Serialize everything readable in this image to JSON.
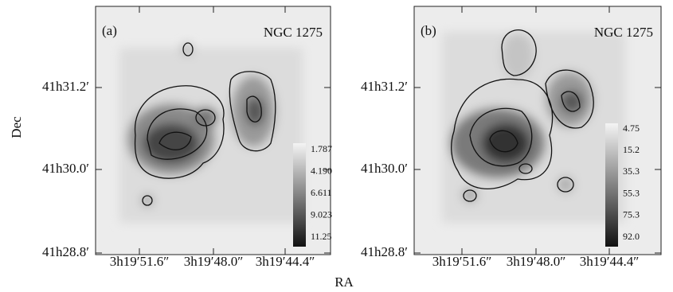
{
  "figure": {
    "y_axis_label": "Dec",
    "x_axis_label": "RA",
    "panels": [
      {
        "label": "(a)",
        "title": "NGC 1275",
        "y_tick_labels": [
          "41h31.2′",
          "41h30.0′",
          "41h28.8′"
        ],
        "x_tick_labels": [
          "3h19′51.6″",
          "3h19′48.0″",
          "3h19′44.4″"
        ],
        "colorbar_labels": [
          "1.787",
          "4.190",
          "6.611",
          "9.023",
          "11.25"
        ]
      },
      {
        "label": "(b)",
        "title": "NGC 1275",
        "y_tick_labels": [
          "41h31.2′",
          "41h30.0′",
          "41h28.8′"
        ],
        "x_tick_labels": [
          "3h19′51.6″",
          "3h19′48.0″",
          "3h19′44.4″"
        ],
        "colorbar_labels": [
          "4.75",
          "15.2",
          "35.3",
          "55.3",
          "75.3",
          "92.0"
        ]
      }
    ]
  }
}
